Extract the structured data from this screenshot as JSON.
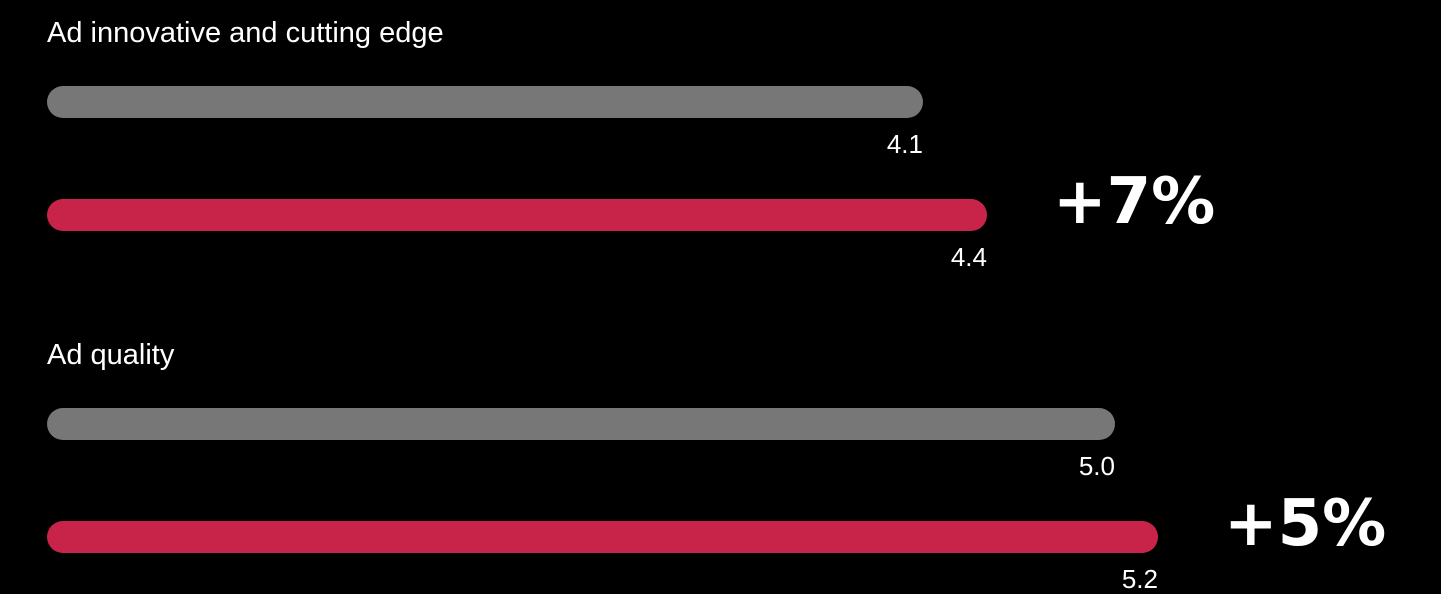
{
  "chart_data": {
    "type": "bar",
    "orientation": "horizontal",
    "categories": [
      "Ad innovative and cutting edge",
      "Ad quality"
    ],
    "series": [
      {
        "color": "#777777",
        "values": [
          4.1,
          5.0
        ]
      },
      {
        "color": "#C8244A",
        "values": [
          4.4,
          5.2
        ]
      }
    ],
    "value_labels": [
      [
        "4.1",
        "4.4"
      ],
      [
        "5.0",
        "5.2"
      ]
    ],
    "deltas": [
      "+7%",
      "+5%"
    ],
    "xlim": [
      0,
      5.2
    ],
    "grid": false,
    "legend": "none"
  }
}
